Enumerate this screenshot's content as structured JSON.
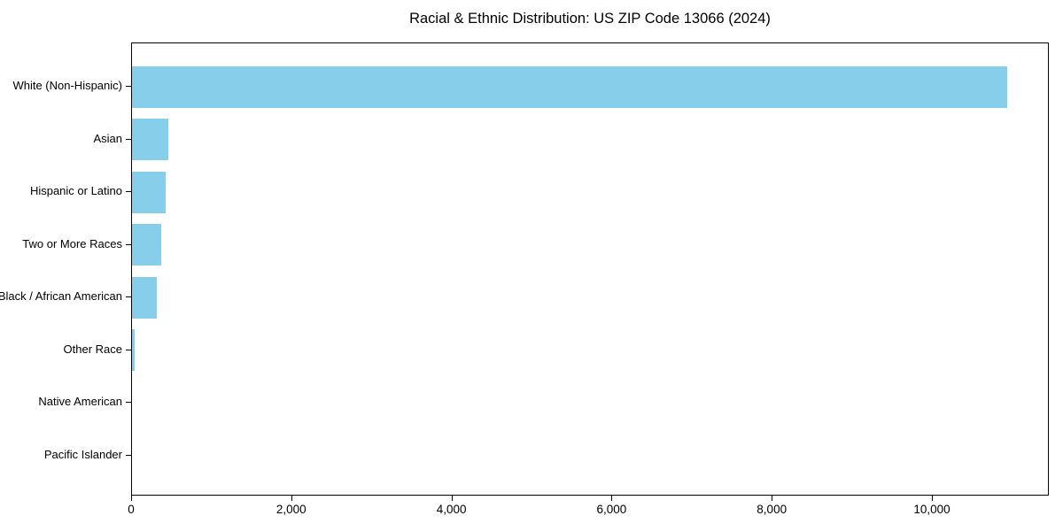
{
  "chart_data": {
    "type": "bar",
    "orientation": "horizontal",
    "title": "Racial & Ethnic Distribution: US ZIP Code 13066 (2024)",
    "categories": [
      "White (Non-Hispanic)",
      "Asian",
      "Hispanic or Latino",
      "Two or More Races",
      "Black / African American",
      "Other Race",
      "Native American",
      "Pacific Islander"
    ],
    "values": [
      10925,
      455,
      420,
      360,
      315,
      35,
      0,
      0
    ],
    "xlabel": "",
    "ylabel": "",
    "xlim": [
      0,
      11460
    ],
    "xticks": [
      0,
      2000,
      4000,
      6000,
      8000,
      10000
    ],
    "xtick_labels": [
      "0",
      "2,000",
      "4,000",
      "6,000",
      "8,000",
      "10,000"
    ],
    "bar_color": "#87CEEB",
    "background_color": "#ffffff",
    "spine_color": "#000000",
    "grid": false,
    "legend": "none"
  }
}
